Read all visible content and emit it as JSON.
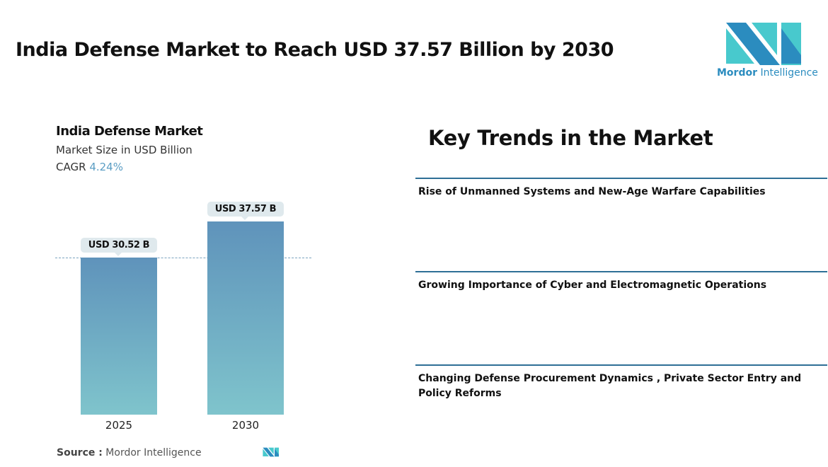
{
  "title": "India Defense Market to Reach USD 37.57 Billion by 2030",
  "logo": {
    "text_bold": "Mordor",
    "text_rest": "Intelligence",
    "colors": [
      "#2b8cbf",
      "#48c9cd"
    ]
  },
  "chart_data": {
    "type": "bar",
    "title": "India Defense Market",
    "subtitle": "Market Size in USD Billion",
    "cagr_label": "CAGR",
    "cagr_value": "4.24%",
    "categories": [
      "2025",
      "2030"
    ],
    "values": [
      30.52,
      37.57
    ],
    "data_labels": [
      "USD 30.52 B",
      "USD 37.57 B"
    ],
    "ylim": [
      0,
      37.57
    ],
    "reference_line": 30.52,
    "colors": {
      "bar_top": "#5f93bb",
      "bar_bottom": "#7fc4cc",
      "label_bg": "#dfe9ed",
      "cagr": "#5b9ec4"
    }
  },
  "source": {
    "label": "Source :",
    "value": "Mordor Intelligence"
  },
  "key_trends": {
    "title": "Key Trends in the Market",
    "items": [
      "Rise of Unmanned Systems and New-Age Warfare Capabilities",
      "Growing Importance of Cyber and Electromagnetic Operations",
      "Changing Defense Procurement Dynamics , Private Sector Entry and Policy Reforms"
    ]
  }
}
